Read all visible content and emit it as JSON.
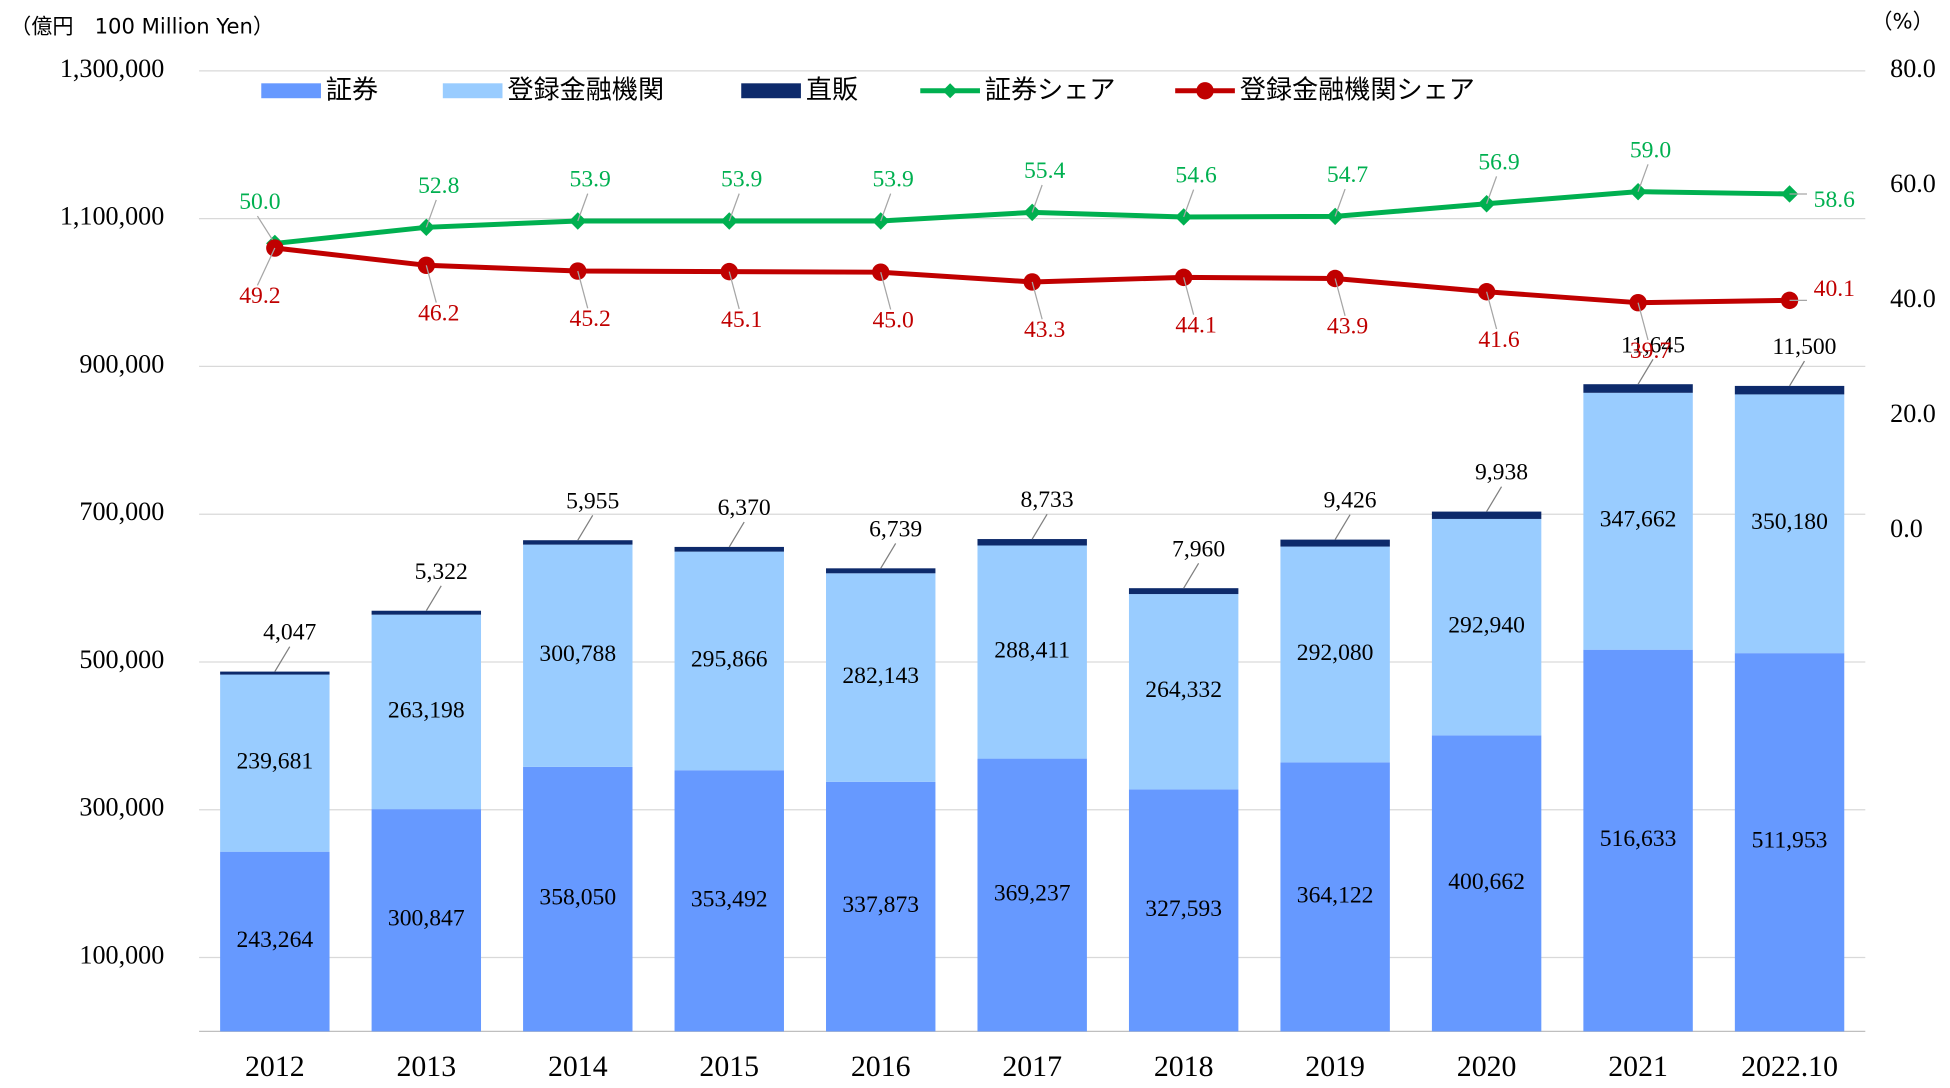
{
  "chart_data": {
    "type": "stacked_bar_line",
    "y_label": "（億円　100 Million Yen）",
    "y2_label": "（%）",
    "categories": [
      "2012",
      "2013",
      "2014",
      "2015",
      "2016",
      "2017",
      "2018",
      "2019",
      "2020",
      "2021",
      "2022.10"
    ],
    "ylim": [
      0,
      1300000
    ],
    "yticks": [
      {
        "value": 100000,
        "label": "100,000"
      },
      {
        "value": 300000,
        "label": "300,000"
      },
      {
        "value": 500000,
        "label": "500,000"
      },
      {
        "value": 700000,
        "label": "700,000"
      },
      {
        "value": 900000,
        "label": "900,000"
      },
      {
        "value": 1100000,
        "label": "1,100,000"
      },
      {
        "value": 1300000,
        "label": "1,300,000"
      }
    ],
    "y2lim": [
      -87,
      80
    ],
    "y2ticks": [
      {
        "value": 0,
        "label": "0.0"
      },
      {
        "value": 20,
        "label": "20.0"
      },
      {
        "value": 40,
        "label": "40.0"
      },
      {
        "value": 60,
        "label": "60.0"
      },
      {
        "value": 80,
        "label": "80.0"
      }
    ],
    "grid": true,
    "legend": "top",
    "series": [
      {
        "name": "証券",
        "color": "#6699ff",
        "kind": "bar",
        "values": [
          243264,
          300847,
          358050,
          353492,
          337873,
          369237,
          327593,
          364122,
          400662,
          516633,
          511953
        ],
        "value_labels": [
          "243,264",
          "300,847",
          "358,050",
          "353,492",
          "337,873",
          "369,237",
          "327,593",
          "364,122",
          "400,662",
          "516,633",
          "511,953"
        ]
      },
      {
        "name": "登録金融機関",
        "color": "#99ccff",
        "kind": "bar",
        "values": [
          239681,
          263198,
          300788,
          295866,
          282143,
          288411,
          264332,
          292080,
          292940,
          347662,
          350180
        ],
        "value_labels": [
          "239,681",
          "263,198",
          "300,788",
          "295,866",
          "282,143",
          "288,411",
          "264,332",
          "292,080",
          "292,940",
          "347,662",
          "350,180"
        ]
      },
      {
        "name": "直販",
        "color": "#0d2a6b",
        "kind": "bar",
        "values": [
          4047,
          5322,
          5955,
          6370,
          6739,
          8733,
          7960,
          9426,
          9938,
          11645,
          11500
        ],
        "value_labels": [
          "4,047",
          "5,322",
          "5,955",
          "6,370",
          "6,739",
          "8,733",
          "7,960",
          "9,426",
          "9,938",
          "11,645",
          "11,500"
        ]
      },
      {
        "name": "証券シェア",
        "color": "#00b050",
        "kind": "line",
        "axis": "y2",
        "marker": "diamond",
        "values": [
          50.0,
          52.8,
          53.9,
          53.9,
          53.9,
          55.4,
          54.6,
          54.7,
          56.9,
          59.0,
          58.6
        ],
        "value_labels": [
          "50.0",
          "52.8",
          "53.9",
          "53.9",
          "53.9",
          "55.4",
          "54.6",
          "54.7",
          "56.9",
          "59.0",
          "58.6"
        ]
      },
      {
        "name": "登録金融機関シェア",
        "color": "#c00000",
        "kind": "line",
        "axis": "y2",
        "marker": "circle",
        "values": [
          49.2,
          46.2,
          45.2,
          45.1,
          45.0,
          43.3,
          44.1,
          43.9,
          41.6,
          39.7,
          40.1
        ],
        "value_labels": [
          "49.2",
          "46.2",
          "45.2",
          "45.1",
          "45.0",
          "43.3",
          "44.1",
          "43.9",
          "41.6",
          "39.7",
          "40.1"
        ]
      }
    ]
  }
}
